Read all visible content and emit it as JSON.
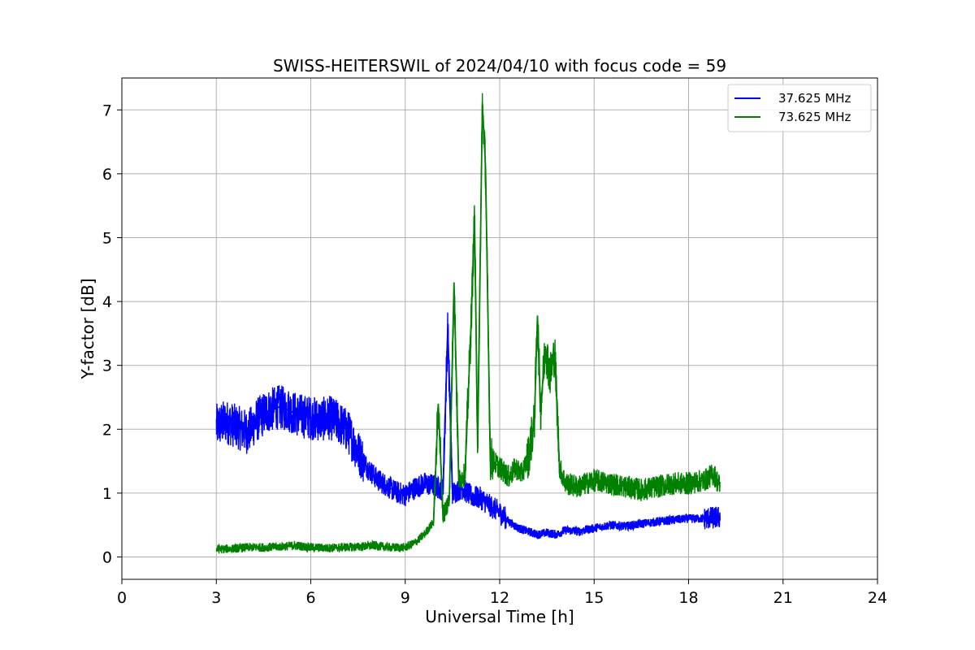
{
  "chart_data": {
    "type": "line",
    "title": "SWISS-HEITERSWIL of 2024/04/10 with focus code = 59",
    "xlabel": "Universal Time [h]",
    "ylabel": "Y-factor [dB]",
    "xlim": [
      0,
      24
    ],
    "ylim": [
      -0.35,
      7.5
    ],
    "xticks": [
      0,
      3,
      6,
      9,
      12,
      15,
      18,
      21,
      24
    ],
    "yticks": [
      0,
      1,
      2,
      3,
      4,
      5,
      6,
      7
    ],
    "grid": true,
    "legend_position": "top-right",
    "series": [
      {
        "name": "37.625 MHz",
        "color": "#0000ff",
        "x": [
          3.0,
          3.3,
          3.6,
          4.0,
          4.3,
          4.6,
          5.0,
          5.3,
          5.6,
          6.0,
          6.3,
          6.6,
          6.9,
          7.2,
          7.5,
          7.8,
          8.1,
          8.4,
          8.7,
          9.0,
          9.3,
          9.6,
          9.9,
          10.2,
          10.35,
          10.5,
          10.8,
          11.1,
          11.4,
          11.7,
          12.0,
          12.3,
          12.6,
          12.9,
          13.2,
          13.5,
          13.8,
          14.1,
          14.5,
          15.0,
          15.5,
          16.0,
          16.5,
          17.0,
          17.5,
          18.0,
          18.5,
          19.0
        ],
        "y": [
          2.05,
          2.12,
          2.05,
          1.95,
          2.15,
          2.28,
          2.35,
          2.3,
          2.22,
          2.18,
          2.15,
          2.18,
          2.1,
          1.95,
          1.65,
          1.4,
          1.22,
          1.12,
          1.02,
          0.97,
          1.08,
          1.15,
          1.12,
          1.05,
          3.6,
          1.0,
          1.08,
          0.95,
          0.92,
          0.8,
          0.7,
          0.55,
          0.45,
          0.4,
          0.35,
          0.38,
          0.35,
          0.42,
          0.4,
          0.45,
          0.5,
          0.48,
          0.52,
          0.55,
          0.58,
          0.6,
          0.6,
          0.62
        ]
      },
      {
        "name": "73.625 MHz",
        "color": "#008000",
        "x": [
          3.0,
          3.5,
          4.0,
          4.5,
          5.0,
          5.5,
          6.0,
          6.5,
          7.0,
          7.5,
          8.0,
          8.5,
          9.0,
          9.3,
          9.6,
          9.9,
          10.05,
          10.2,
          10.4,
          10.55,
          10.7,
          10.9,
          11.1,
          11.2,
          11.3,
          11.45,
          11.55,
          11.7,
          11.9,
          12.1,
          12.3,
          12.5,
          12.7,
          12.9,
          13.1,
          13.2,
          13.3,
          13.45,
          13.6,
          13.75,
          13.9,
          14.1,
          14.5,
          15.0,
          15.5,
          16.0,
          16.5,
          17.0,
          17.5,
          18.0,
          18.5,
          18.8,
          19.0
        ],
        "y": [
          0.12,
          0.13,
          0.15,
          0.15,
          0.16,
          0.18,
          0.15,
          0.14,
          0.15,
          0.16,
          0.18,
          0.15,
          0.15,
          0.22,
          0.35,
          0.55,
          2.4,
          0.65,
          0.9,
          4.3,
          1.2,
          1.3,
          3.75,
          5.35,
          1.7,
          7.1,
          6.1,
          1.55,
          1.45,
          1.35,
          1.25,
          1.4,
          1.3,
          1.55,
          2.1,
          3.78,
          2.3,
          3.3,
          2.85,
          3.2,
          1.4,
          1.15,
          1.1,
          1.2,
          1.15,
          1.1,
          1.05,
          1.1,
          1.15,
          1.15,
          1.2,
          1.3,
          1.1
        ]
      }
    ]
  }
}
